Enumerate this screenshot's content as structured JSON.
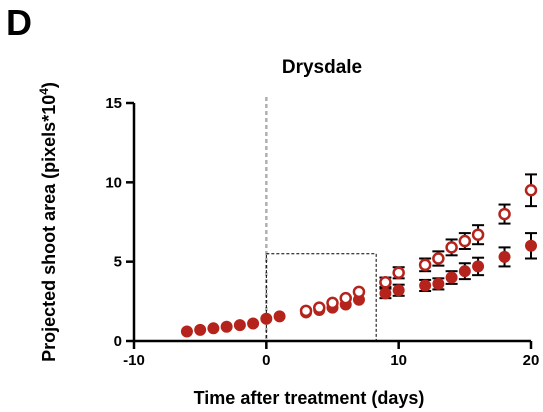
{
  "panel_label": "D",
  "chart_data": {
    "type": "scatter",
    "title": "Drysdale",
    "xlabel": "Time after treatment (days)",
    "ylabel_main": "Projected shoot area (pixels*10",
    "ylabel_sup": "4",
    "ylabel_end": ")",
    "xlim": [
      -10,
      20
    ],
    "ylim": [
      0,
      15
    ],
    "xticks": [
      -10,
      0,
      10,
      20
    ],
    "yticks": [
      0,
      5,
      10,
      15
    ],
    "grid": false,
    "legend": "none",
    "colors": {
      "series": "#b5241c",
      "axis": "#000000",
      "treatment_line": "#b0b0b0"
    },
    "treatment_day": 0,
    "highlight_box": {
      "x": [
        0,
        8.3
      ],
      "y": [
        0,
        5.5
      ]
    },
    "series": [
      {
        "marker": "filled",
        "points": [
          {
            "x": -6,
            "y": 0.6,
            "err": 0
          },
          {
            "x": -5,
            "y": 0.7,
            "err": 0
          },
          {
            "x": -4,
            "y": 0.8,
            "err": 0
          },
          {
            "x": -3,
            "y": 0.9,
            "err": 0
          },
          {
            "x": -2,
            "y": 1.0,
            "err": 0
          },
          {
            "x": -1,
            "y": 1.1,
            "err": 0
          },
          {
            "x": 0,
            "y": 1.4,
            "err": 0
          },
          {
            "x": 1,
            "y": 1.55,
            "err": 0
          },
          {
            "x": 3,
            "y": 1.8,
            "err": 0
          },
          {
            "x": 4,
            "y": 1.95,
            "err": 0
          },
          {
            "x": 5,
            "y": 2.1,
            "err": 0
          },
          {
            "x": 6,
            "y": 2.3,
            "err": 0
          },
          {
            "x": 7,
            "y": 2.6,
            "err": 0
          },
          {
            "x": 9,
            "y": 3.0,
            "err": 0.3
          },
          {
            "x": 10,
            "y": 3.2,
            "err": 0.35
          },
          {
            "x": 12,
            "y": 3.5,
            "err": 0.35
          },
          {
            "x": 13,
            "y": 3.6,
            "err": 0.35
          },
          {
            "x": 14,
            "y": 4.0,
            "err": 0.4
          },
          {
            "x": 15,
            "y": 4.4,
            "err": 0.5
          },
          {
            "x": 16,
            "y": 4.7,
            "err": 0.55
          },
          {
            "x": 18,
            "y": 5.3,
            "err": 0.6
          },
          {
            "x": 20,
            "y": 6.0,
            "err": 0.8
          }
        ]
      },
      {
        "marker": "open",
        "points": [
          {
            "x": 3,
            "y": 1.9,
            "err": 0
          },
          {
            "x": 4,
            "y": 2.1,
            "err": 0
          },
          {
            "x": 5,
            "y": 2.4,
            "err": 0
          },
          {
            "x": 6,
            "y": 2.7,
            "err": 0
          },
          {
            "x": 7,
            "y": 3.1,
            "err": 0
          },
          {
            "x": 9,
            "y": 3.7,
            "err": 0.3
          },
          {
            "x": 10,
            "y": 4.3,
            "err": 0.35
          },
          {
            "x": 12,
            "y": 4.8,
            "err": 0.4
          },
          {
            "x": 13,
            "y": 5.2,
            "err": 0.45
          },
          {
            "x": 14,
            "y": 5.9,
            "err": 0.5
          },
          {
            "x": 15,
            "y": 6.3,
            "err": 0.5
          },
          {
            "x": 16,
            "y": 6.7,
            "err": 0.6
          },
          {
            "x": 18,
            "y": 8.0,
            "err": 0.6
          },
          {
            "x": 20,
            "y": 9.5,
            "err": 1.0
          }
        ]
      }
    ]
  }
}
